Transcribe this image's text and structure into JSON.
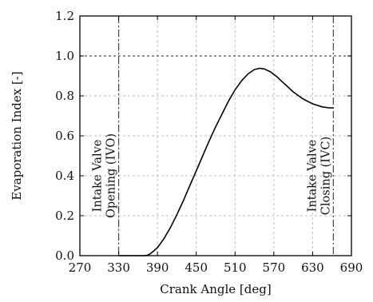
{
  "chart_data": {
    "type": "line",
    "title": "",
    "xlabel": "Crank Angle [deg]",
    "ylabel": "Evaporation Index [-]",
    "xlim": [
      270,
      690
    ],
    "ylim": [
      0,
      1.2
    ],
    "xticks": [
      "270",
      "330",
      "390",
      "450",
      "510",
      "570",
      "630",
      "690"
    ],
    "yticks": [
      "0.0",
      "0.2",
      "0.4",
      "0.6",
      "0.8",
      "1.0",
      "1.2"
    ],
    "grid": true,
    "series": [
      {
        "color": "#000000",
        "x": [
          330,
          370,
          375,
          380,
          390,
          400,
          410,
          420,
          430,
          440,
          450,
          460,
          470,
          480,
          490,
          500,
          510,
          520,
          530,
          540,
          548,
          555,
          565,
          575,
          585,
          600,
          615,
          630,
          645,
          655,
          662
        ],
        "y": [
          0.0,
          0.0,
          0.003,
          0.012,
          0.04,
          0.085,
          0.14,
          0.205,
          0.275,
          0.35,
          0.425,
          0.5,
          0.575,
          0.645,
          0.71,
          0.775,
          0.83,
          0.875,
          0.91,
          0.932,
          0.938,
          0.935,
          0.92,
          0.895,
          0.865,
          0.82,
          0.785,
          0.76,
          0.745,
          0.74,
          0.74
        ]
      }
    ],
    "reference_lines": [
      {
        "axis": "y",
        "value": 1.0,
        "style": "dotted"
      },
      {
        "axis": "x",
        "value": 330,
        "style": "dash-dot",
        "label": [
          "Intake Valve",
          "Opening (IVO)"
        ]
      },
      {
        "axis": "x",
        "value": 662,
        "style": "dash-dot",
        "label": [
          "Intake Valve",
          "Closing (IVC)"
        ]
      }
    ]
  }
}
